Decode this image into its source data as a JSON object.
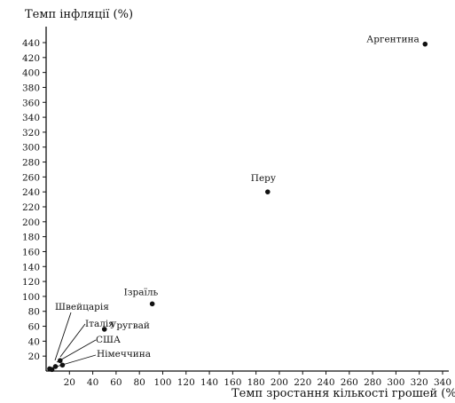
{
  "chart_data": {
    "type": "scatter",
    "title": "",
    "ylabel": "Темп інфляції (%)",
    "xlabel": "Темп зростання кількості грошей (%)",
    "xlim": [
      0,
      340
    ],
    "ylim": [
      0,
      440
    ],
    "x_ticks": [
      20,
      40,
      60,
      80,
      100,
      120,
      140,
      160,
      180,
      200,
      220,
      240,
      260,
      280,
      300,
      320,
      340
    ],
    "y_ticks": [
      20,
      40,
      60,
      80,
      100,
      120,
      140,
      160,
      180,
      200,
      220,
      240,
      260,
      280,
      300,
      320,
      340,
      360,
      380,
      400,
      420,
      440
    ],
    "grid": false,
    "points": [
      {
        "label": "Аргентина",
        "x": 325,
        "y": 438
      },
      {
        "label": "Перу",
        "x": 190,
        "y": 240
      },
      {
        "label": "Ізраїль",
        "x": 91,
        "y": 90
      },
      {
        "label": "Уругвай",
        "x": 50,
        "y": 56
      },
      {
        "label": "Швейцарія",
        "x": 3,
        "y": 3
      },
      {
        "label": "Італія",
        "x": 12,
        "y": 14
      },
      {
        "label": "США",
        "x": 8,
        "y": 6
      },
      {
        "label": "Німеччина",
        "x": 5,
        "y": 2
      },
      {
        "label": "",
        "x": 14,
        "y": 8
      }
    ]
  }
}
